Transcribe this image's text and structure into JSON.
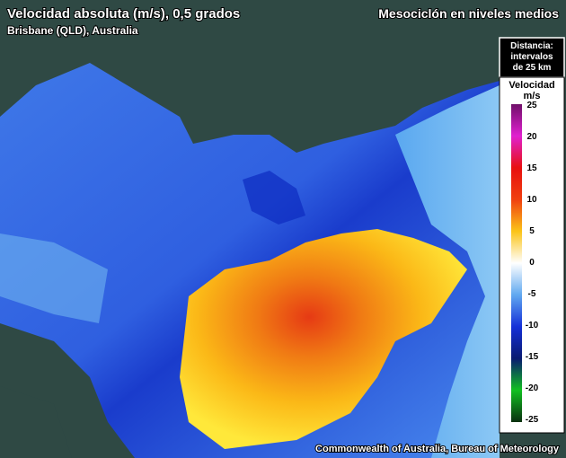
{
  "header": {
    "title": "Velocidad absoluta (m/s), 0,5 grados",
    "subtitle": "Brisbane (QLD), Australia",
    "product": "Mesociclón en niveles medios"
  },
  "distance_box": {
    "lines": [
      "Distancia:",
      "intervalos",
      "de 25 km"
    ]
  },
  "legend": {
    "title": "Velocidad",
    "unit": "m/s",
    "ticks": [
      25,
      20,
      15,
      10,
      5,
      0,
      -5,
      -10,
      -15,
      -20,
      -25
    ]
  },
  "credit": "Commonwealth of Australia, Bureau of Meteorology"
}
